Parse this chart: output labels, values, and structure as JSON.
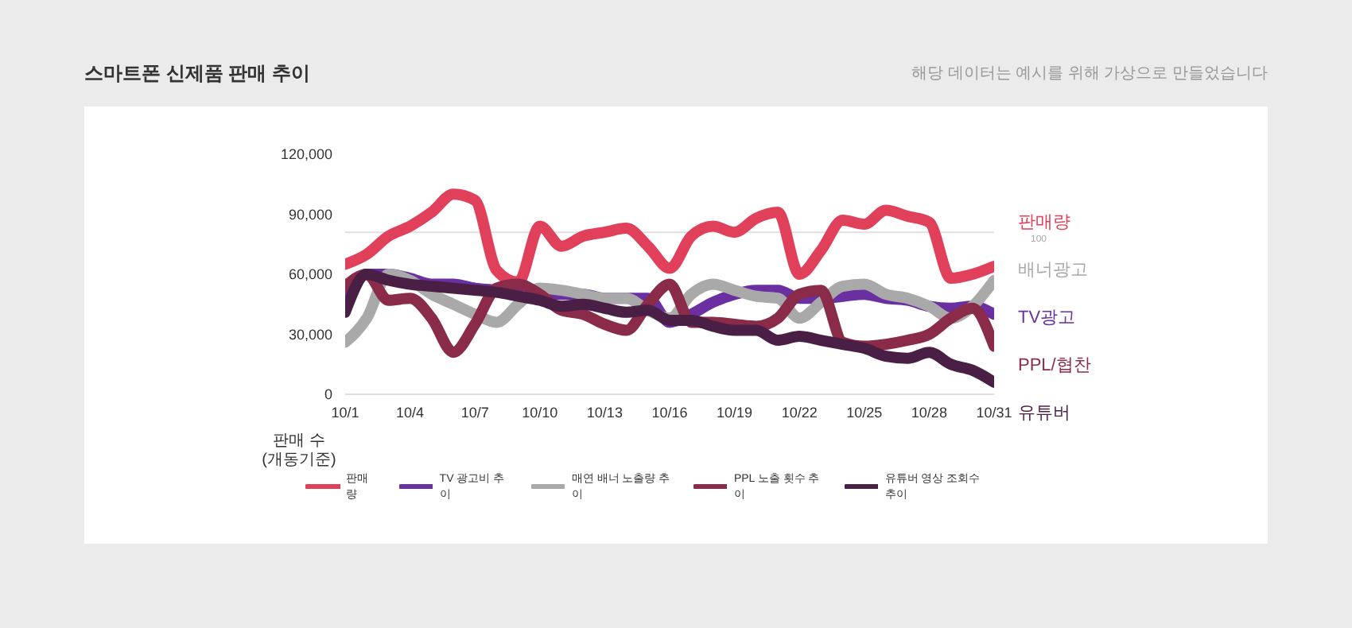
{
  "chart_data": {
    "type": "line",
    "title": "스마트폰 신제품 판매 추이",
    "subtitle": "해당 데이터는 예시를 위해 가상으로 만들었습니다",
    "ylabel": "판매 수 (개동기준)",
    "categories": [
      "10/1",
      null,
      null,
      "10/4",
      null,
      null,
      "10/7",
      null,
      null,
      "10/10",
      null,
      null,
      "10/13",
      null,
      null,
      "10/16",
      null,
      null,
      "10/19",
      null,
      null,
      "10/22",
      null,
      null,
      "10/25",
      null,
      null,
      "10/28",
      null,
      null,
      "10/31"
    ],
    "series": [
      {
        "name": "판매량",
        "color": "#e0405a",
        "values": [
          65000,
          70000,
          79000,
          84000,
          91000,
          100000,
          97000,
          62000,
          56000,
          84000,
          74000,
          79000,
          81000,
          83000,
          74000,
          63000,
          79000,
          84000,
          81000,
          88000,
          91000,
          60000,
          72000,
          87000,
          85000,
          92000,
          89000,
          86000,
          58000,
          60000,
          64000
        ]
      },
      {
        "name": "TV 광고비 추이",
        "color": "#6a2fa0",
        "values": [
          48000,
          60000,
          60000,
          58000,
          55000,
          55000,
          53000,
          52000,
          50000,
          50000,
          50000,
          50000,
          48000,
          48000,
          48000,
          36000,
          40000,
          46000,
          50000,
          52000,
          52000,
          48000,
          48000,
          49000,
          50000,
          48000,
          47000,
          44000,
          43000,
          44000,
          40000
        ]
      },
      {
        "name": "매연 배너 노출량 추이",
        "color": "#a9a9a9",
        "values": [
          26000,
          38000,
          60000,
          57000,
          50000,
          45000,
          40000,
          36000,
          45000,
          53000,
          52000,
          50000,
          48000,
          48000,
          42000,
          38000,
          50000,
          55000,
          52000,
          49000,
          48000,
          38000,
          46000,
          54000,
          55000,
          50000,
          48000,
          44000,
          38000,
          44000,
          57000
        ]
      },
      {
        "name": "PPL 노출 횟수 추이",
        "color": "#8a2b4a",
        "values": [
          54000,
          60000,
          47000,
          48000,
          38000,
          21000,
          35000,
          53000,
          55000,
          50000,
          42000,
          40000,
          35000,
          32000,
          45000,
          55000,
          36000,
          36000,
          35000,
          34000,
          38000,
          50000,
          52000,
          26000,
          24000,
          25000,
          27000,
          30000,
          38000,
          43000,
          24000
        ]
      },
      {
        "name": "유튜버 영상 조회수 추이",
        "color": "#4a1f45",
        "values": [
          41000,
          60000,
          57000,
          55000,
          54000,
          53000,
          52000,
          51000,
          49000,
          47000,
          44000,
          45000,
          43000,
          41000,
          42000,
          37000,
          37000,
          34000,
          32000,
          32000,
          27000,
          29000,
          27000,
          25000,
          23000,
          19000,
          18000,
          21000,
          15000,
          12000,
          6000
        ]
      }
    ],
    "ylim": [
      0,
      120000
    ],
    "yticks": [
      0,
      {
        "value": 30000,
        "label": "30,000"
      },
      {
        "value": 60000,
        "label": "60,000"
      },
      {
        "value": 90000,
        "label": "90,000"
      },
      {
        "value": 120000,
        "label": "120,000"
      }
    ],
    "ref_lines": [
      {
        "axis": "y",
        "value": 81000,
        "color": "#e0e0e0"
      }
    ],
    "annotations": [
      "판매량",
      "배너광고",
      "TV광고",
      "PPL/협찬",
      "유튜버",
      "100"
    ],
    "legend": "bottom",
    "marker": "none",
    "line_style": "solid"
  }
}
